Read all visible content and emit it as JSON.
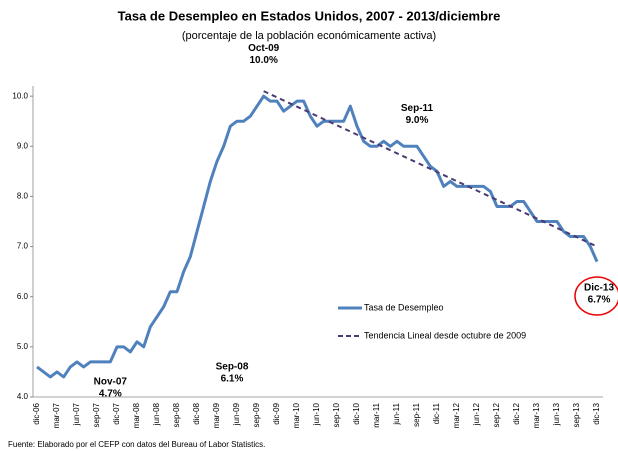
{
  "chart_data": {
    "type": "line",
    "title": "Tasa de Desempleo en Estados Unidos, 2007 - 2013/diciembre",
    "subtitle": "(porcentaje de la población económicamente activa)",
    "source": "Fuente: Elaborado por el CEFP con datos del Bureau of Labor Statistics.",
    "categories": [
      "dic-06",
      null,
      null,
      "mar-07",
      null,
      null,
      "jun-07",
      null,
      null,
      "sep-07",
      null,
      null,
      "dic-07",
      null,
      null,
      "mar-08",
      null,
      null,
      "jun-08",
      null,
      null,
      "sep-08",
      null,
      null,
      "dic-08",
      null,
      null,
      "mar-09",
      null,
      null,
      "jun-09",
      null,
      null,
      "sep-09",
      null,
      null,
      "dic-09",
      null,
      null,
      "mar-10",
      null,
      null,
      "jun-10",
      null,
      null,
      "sep-10",
      null,
      null,
      "dic-10",
      null,
      null,
      "mar-11",
      null,
      null,
      "jun-11",
      null,
      null,
      "sep-11",
      null,
      null,
      "dic-11",
      null,
      null,
      "mar-12",
      null,
      null,
      "jun-12",
      null,
      null,
      "sep-12",
      null,
      null,
      "dic-12",
      null,
      null,
      "mar-13",
      null,
      null,
      "jun-13",
      null,
      null,
      "sep-13",
      null,
      null,
      "dic-13"
    ],
    "ylim": [
      4,
      11
    ],
    "yticks": [
      {
        "value": 4,
        "label": "4.0"
      },
      {
        "value": 5,
        "label": "5.0"
      },
      {
        "value": 6,
        "label": "6.0"
      },
      {
        "value": 7,
        "label": "7.0"
      },
      {
        "value": 8,
        "label": "8.0"
      },
      {
        "value": 9,
        "label": "9.0"
      },
      {
        "value": 10,
        "label": "10.0"
      }
    ],
    "series": [
      {
        "name": "Tasa de Desempleo",
        "color": "#4f81bd",
        "style": "solid",
        "values": [
          4.6,
          4.5,
          4.4,
          4.5,
          4.4,
          4.6,
          4.7,
          4.6,
          4.7,
          4.7,
          4.7,
          4.7,
          5.0,
          5.0,
          4.9,
          5.1,
          5.0,
          5.4,
          5.6,
          5.8,
          6.1,
          6.1,
          6.5,
          6.8,
          7.3,
          7.8,
          8.3,
          8.7,
          9.0,
          9.4,
          9.5,
          9.5,
          9.6,
          9.8,
          10.0,
          9.9,
          9.9,
          9.7,
          9.8,
          9.9,
          9.9,
          9.6,
          9.4,
          9.5,
          9.5,
          9.5,
          9.5,
          9.8,
          9.4,
          9.1,
          9.0,
          9.0,
          9.1,
          9.0,
          9.1,
          9.0,
          9.0,
          9.0,
          8.8,
          8.6,
          8.5,
          8.2,
          8.3,
          8.2,
          8.2,
          8.2,
          8.2,
          8.2,
          8.1,
          7.8,
          7.8,
          7.8,
          7.9,
          7.9,
          7.7,
          7.5,
          7.5,
          7.5,
          7.5,
          7.3,
          7.2,
          7.2,
          7.2,
          7.0,
          6.7
        ],
        "point_labels": [
          null,
          null,
          null,
          null,
          null,
          null,
          null,
          null,
          null,
          null,
          null,
          "Nov-07",
          null,
          null,
          null,
          null,
          null,
          null,
          null,
          null,
          null,
          "Sep-08",
          null,
          null,
          null,
          null,
          null,
          null,
          null,
          null,
          null,
          null,
          null,
          null,
          "Oct-09",
          null,
          null,
          null,
          null,
          null,
          null,
          null,
          null,
          null,
          null,
          null,
          null,
          null,
          null,
          null,
          null,
          null,
          null,
          null,
          null,
          null,
          null,
          "Sep-11",
          null,
          null,
          null,
          null,
          null,
          null,
          null,
          null,
          null,
          null,
          null,
          null,
          null,
          null,
          null,
          null,
          null,
          null,
          null,
          null,
          null,
          null,
          null,
          null,
          null,
          null,
          "Dic-13"
        ],
        "value_labels": [
          null,
          null,
          null,
          null,
          null,
          null,
          null,
          null,
          null,
          null,
          null,
          "4.7%",
          null,
          null,
          null,
          null,
          null,
          null,
          null,
          null,
          null,
          "6.1%",
          null,
          null,
          null,
          null,
          null,
          null,
          null,
          null,
          null,
          null,
          null,
          null,
          "10.0%",
          null,
          null,
          null,
          null,
          null,
          null,
          null,
          null,
          null,
          null,
          null,
          null,
          null,
          null,
          null,
          null,
          null,
          null,
          null,
          null,
          null,
          null,
          "9.0%",
          null,
          null,
          null,
          null,
          null,
          null,
          null,
          null,
          null,
          null,
          null,
          null,
          null,
          null,
          null,
          null,
          null,
          null,
          null,
          null,
          null,
          null,
          null,
          null,
          null,
          null,
          "6.7%"
        ]
      },
      {
        "name": "Tendencia Lineal desde octubre de 2009",
        "color": "#4b3a73",
        "style": "dashed",
        "values": [
          null,
          null,
          null,
          null,
          null,
          null,
          null,
          null,
          null,
          null,
          null,
          null,
          null,
          null,
          null,
          null,
          null,
          null,
          null,
          null,
          null,
          null,
          null,
          null,
          null,
          null,
          null,
          null,
          null,
          null,
          null,
          null,
          null,
          null,
          10.1,
          10.038,
          9.976,
          9.914,
          9.852,
          9.79,
          9.728,
          9.666,
          9.604,
          9.542,
          9.48,
          9.418,
          9.356,
          9.294,
          9.232,
          9.17,
          9.108,
          9.046,
          8.984,
          8.922,
          8.86,
          8.798,
          8.736,
          8.674,
          8.612,
          8.55,
          8.488,
          8.426,
          8.364,
          8.302,
          8.24,
          8.178,
          8.116,
          8.054,
          7.992,
          7.93,
          7.868,
          7.806,
          7.744,
          7.682,
          7.62,
          7.558,
          7.496,
          7.434,
          7.372,
          7.31,
          7.248,
          7.186,
          7.124,
          7.062,
          7.0
        ]
      }
    ]
  }
}
